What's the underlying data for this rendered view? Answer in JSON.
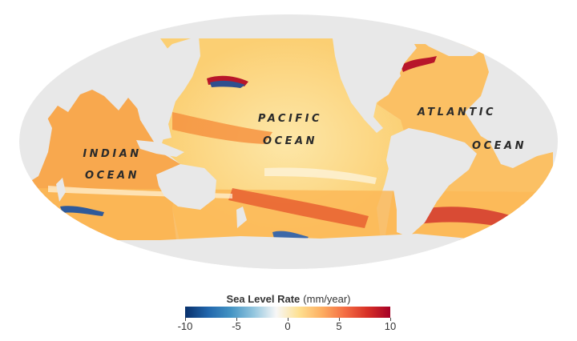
{
  "map": {
    "projection": "mollweide",
    "land_color": "#e8e8e8",
    "ocean_labels": [
      {
        "id": "pacific",
        "lines": [
          "PACIFIC",
          "OCEAN"
        ]
      },
      {
        "id": "atlantic",
        "lines": [
          "ATLANTIC",
          "OCEAN"
        ]
      },
      {
        "id": "indian",
        "lines": [
          "INDIAN",
          "OCEAN"
        ]
      }
    ]
  },
  "legend": {
    "title": "Sea Level Rate",
    "unit": "(mm/year)",
    "min": -10,
    "max": 10,
    "ticks": [
      "-10",
      "-5",
      "0",
      "5",
      "10"
    ],
    "colors": [
      "#08306b",
      "#2166ac",
      "#4393c3",
      "#92c5de",
      "#f7f7f7",
      "#fee090",
      "#fdae61",
      "#f46d43",
      "#d73027",
      "#a50026"
    ]
  }
}
